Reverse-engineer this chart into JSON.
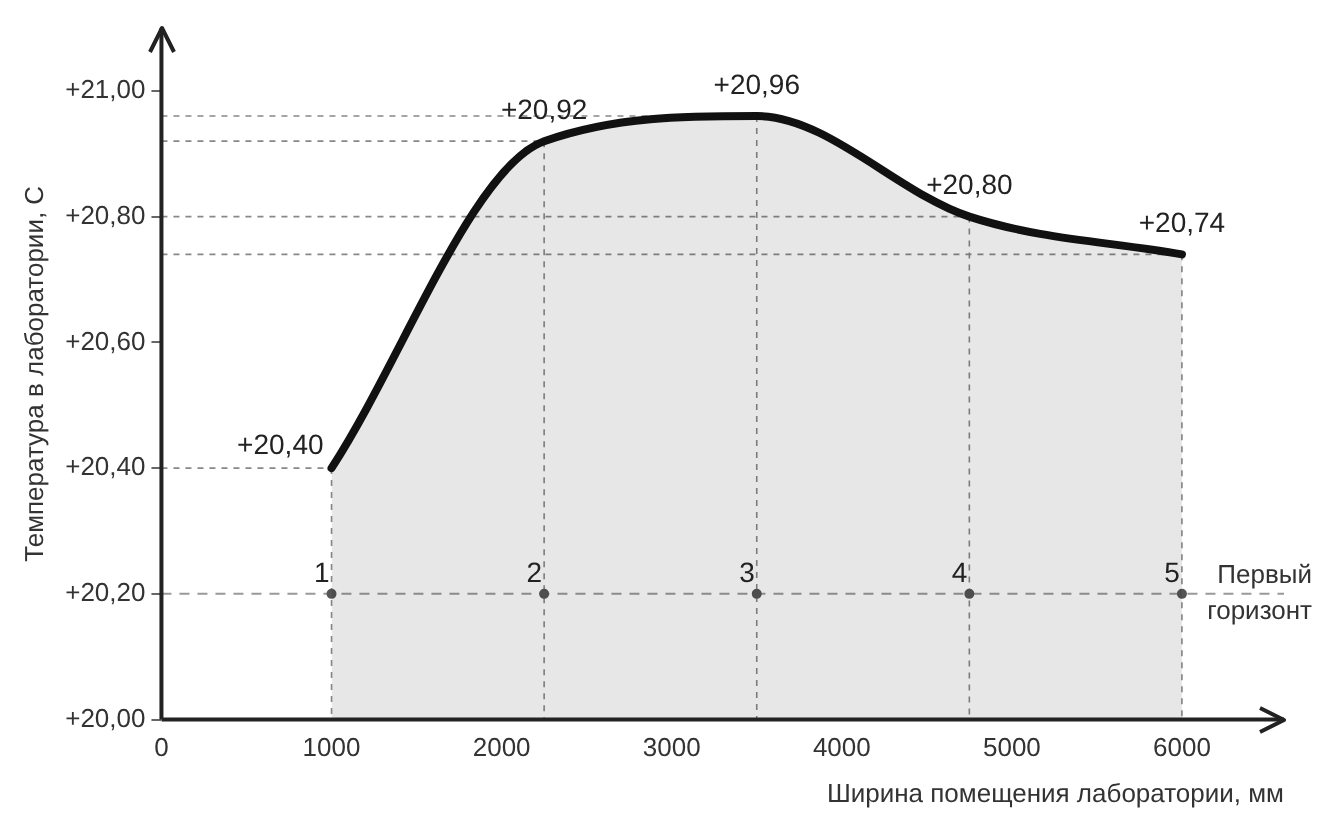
{
  "chart_data": {
    "type": "area",
    "xlabel": "Ширина помещения лаборатории, мм",
    "ylabel": "Температура в лаборатории, С",
    "xlim": [
      0,
      6600
    ],
    "xticks": [
      0,
      1000,
      2000,
      3000,
      4000,
      5000,
      6000
    ],
    "ylim": [
      20,
      21.1
    ],
    "yticks": [
      {
        "value": 20,
        "label": "+20,00"
      },
      {
        "value": 20.2,
        "label": "+20,20"
      },
      {
        "value": 20.4,
        "label": "+20,40"
      },
      {
        "value": 20.6,
        "label": "+20,60"
      },
      {
        "value": 20.8,
        "label": "+20,80"
      },
      {
        "value": 21,
        "label": "+21,00"
      }
    ],
    "grid": false,
    "legend": false,
    "series": [
      {
        "color": "#111111",
        "marker": "none",
        "x": [
          1000,
          2250,
          3500,
          4750,
          6000
        ],
        "values": [
          20.4,
          20.92,
          20.96,
          20.8,
          20.74
        ],
        "value_labels": [
          "+20,40",
          "+20,92",
          "+20,96",
          "+20,80",
          "+20,74"
        ]
      },
      {
        "type": "scatter",
        "color": "#555555",
        "marker": "circle",
        "x": [
          1000,
          2250,
          3500,
          4750,
          6000
        ],
        "values": [
          20.2,
          20.2,
          20.2,
          20.2,
          20.2
        ]
      }
    ],
    "annotations": [
      {
        "text": "1",
        "x": 1000,
        "y": 20.2
      },
      {
        "text": "2",
        "x": 2250,
        "y": 20.2
      },
      {
        "text": "3",
        "x": 3500,
        "y": 20.2
      },
      {
        "text": "4",
        "x": 4750,
        "y": 20.2
      },
      {
        "text": "5",
        "x": 6000,
        "y": 20.2
      }
    ],
    "ref_lines": [
      {
        "axis": "y",
        "value": 20.2,
        "label": "Первый горизонт",
        "color": "#999999",
        "line_style": "dashed"
      }
    ]
  }
}
